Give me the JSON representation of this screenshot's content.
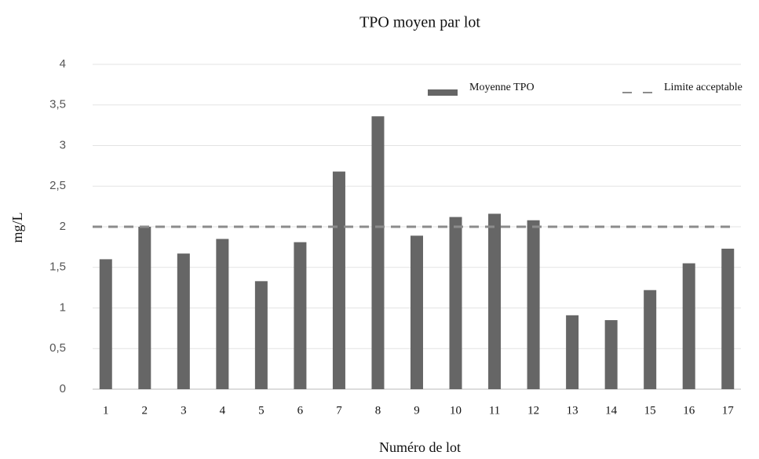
{
  "chart_data": {
    "type": "bar",
    "title": "TPO moyen par lot",
    "xlabel": "Numéro de lot",
    "ylabel": "mg/L",
    "categories": [
      "1",
      "2",
      "3",
      "4",
      "5",
      "6",
      "7",
      "8",
      "9",
      "10",
      "11",
      "12",
      "13",
      "14",
      "15",
      "16",
      "17"
    ],
    "series": [
      {
        "name": "Moyenne TPO",
        "color": "#666666",
        "values": [
          1.6,
          2.0,
          1.67,
          1.85,
          1.33,
          1.81,
          2.68,
          3.36,
          1.89,
          2.12,
          2.16,
          2.08,
          0.91,
          0.85,
          1.22,
          1.55,
          1.73
        ]
      }
    ],
    "reference_line": {
      "name": "Limite acceptable",
      "value": 2,
      "color": "#8c8c8c",
      "dashed": true
    },
    "ylim": [
      0,
      4
    ],
    "yticks": [
      0,
      {
        "value": 0.5,
        "label": "0,5"
      },
      1,
      {
        "value": 1.5,
        "label": "1,5"
      },
      2,
      {
        "value": 2.5,
        "label": "2,5"
      },
      3,
      {
        "value": 3.5,
        "label": "3,5"
      },
      4
    ],
    "grid": true,
    "legend": "top-right"
  }
}
